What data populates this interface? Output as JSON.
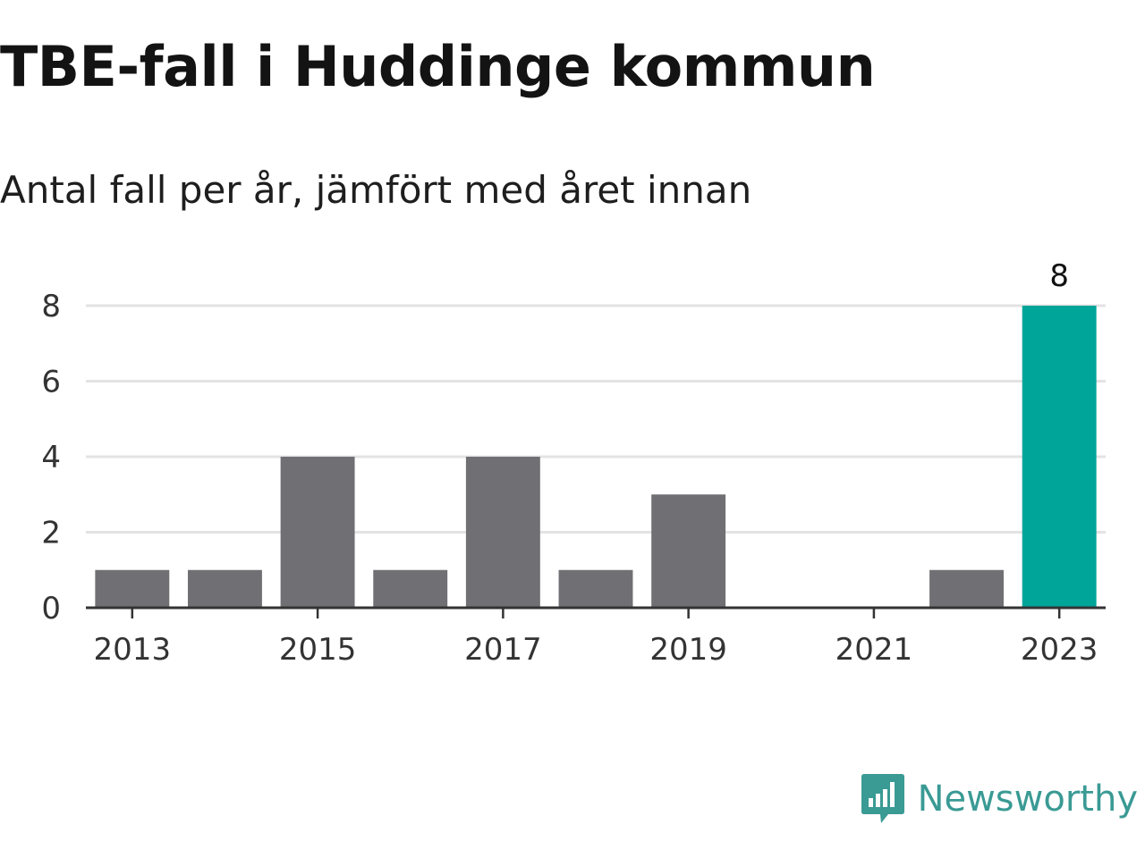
{
  "header": {
    "title": "TBE-fall i Huddinge kommun",
    "subtitle": "Antal fall per år, jämfört med året innan"
  },
  "branding": {
    "name": "Newsworthy",
    "logo_icon": "bar-chart-speech-bubble-icon",
    "color": "#3a9a94"
  },
  "colors": {
    "bar_default": "#706f74",
    "bar_highlight": "#00a59a",
    "grid": "#e3e3e3",
    "axis": "#333333"
  },
  "chart_data": {
    "type": "bar",
    "categories": [
      "2013",
      "2014",
      "2015",
      "2016",
      "2017",
      "2018",
      "2019",
      "2020",
      "2021",
      "2022",
      "2023"
    ],
    "values": [
      1,
      1,
      4,
      1,
      4,
      1,
      3,
      0,
      0,
      1,
      8
    ],
    "x_tick_labels": [
      "2013",
      "2015",
      "2017",
      "2019",
      "2021",
      "2023"
    ],
    "y_ticks": [
      0,
      2,
      4,
      6,
      8
    ],
    "ylim": [
      0,
      8
    ],
    "highlight": "2023",
    "data_labels": [
      {
        "category": "2023",
        "text": "8"
      }
    ],
    "title": "TBE-fall i Huddinge kommun",
    "subtitle": "Antal fall per år, jämfört med året innan",
    "xlabel": "",
    "ylabel": "",
    "grid": true,
    "legend": "none"
  }
}
